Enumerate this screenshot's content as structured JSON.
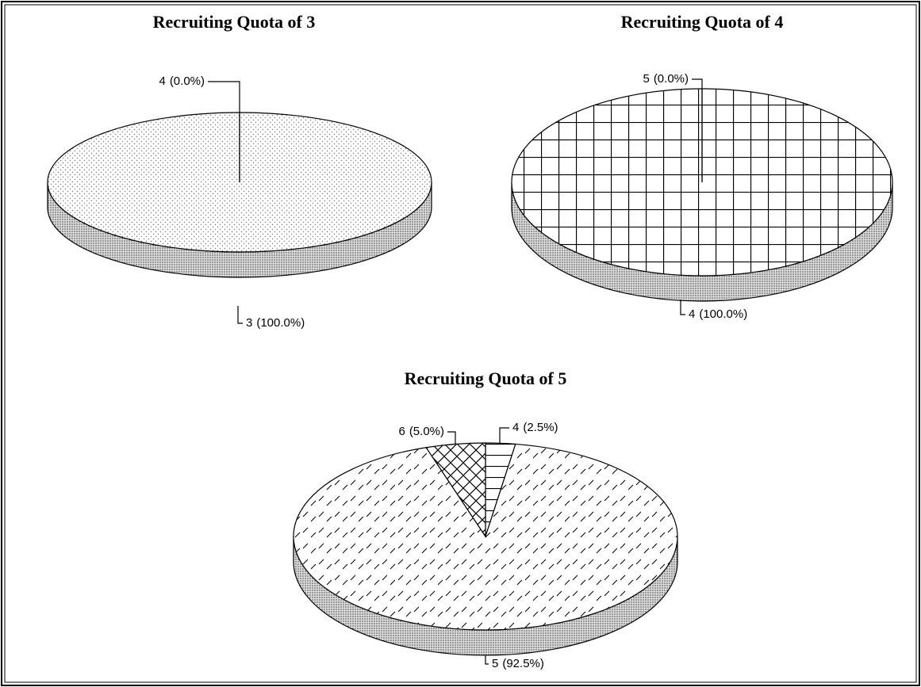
{
  "chart_data": [
    {
      "type": "pie",
      "title": "Recruiting Quota of 3",
      "categories": [
        "3",
        "4"
      ],
      "values": [
        100,
        0
      ],
      "value_labels": [
        "(100.0%)",
        "(0.0%)"
      ],
      "patterns": [
        "dots",
        "dots"
      ]
    },
    {
      "type": "pie",
      "title": "Recruiting Quota of 4",
      "categories": [
        "4",
        "5"
      ],
      "values": [
        100,
        0
      ],
      "value_labels": [
        "(100.0%)",
        "(0.0%)"
      ],
      "patterns": [
        "grid",
        "grid"
      ]
    },
    {
      "type": "pie",
      "title": "Recruiting Quota of 5",
      "categories": [
        "4",
        "5",
        "6"
      ],
      "values": [
        2.5,
        92.5,
        5.0
      ],
      "value_labels": [
        "(2.5%)",
        "(92.5%)",
        "(5.0%)"
      ],
      "patterns": [
        "hlines",
        "dashes",
        "crosshatch"
      ]
    }
  ]
}
